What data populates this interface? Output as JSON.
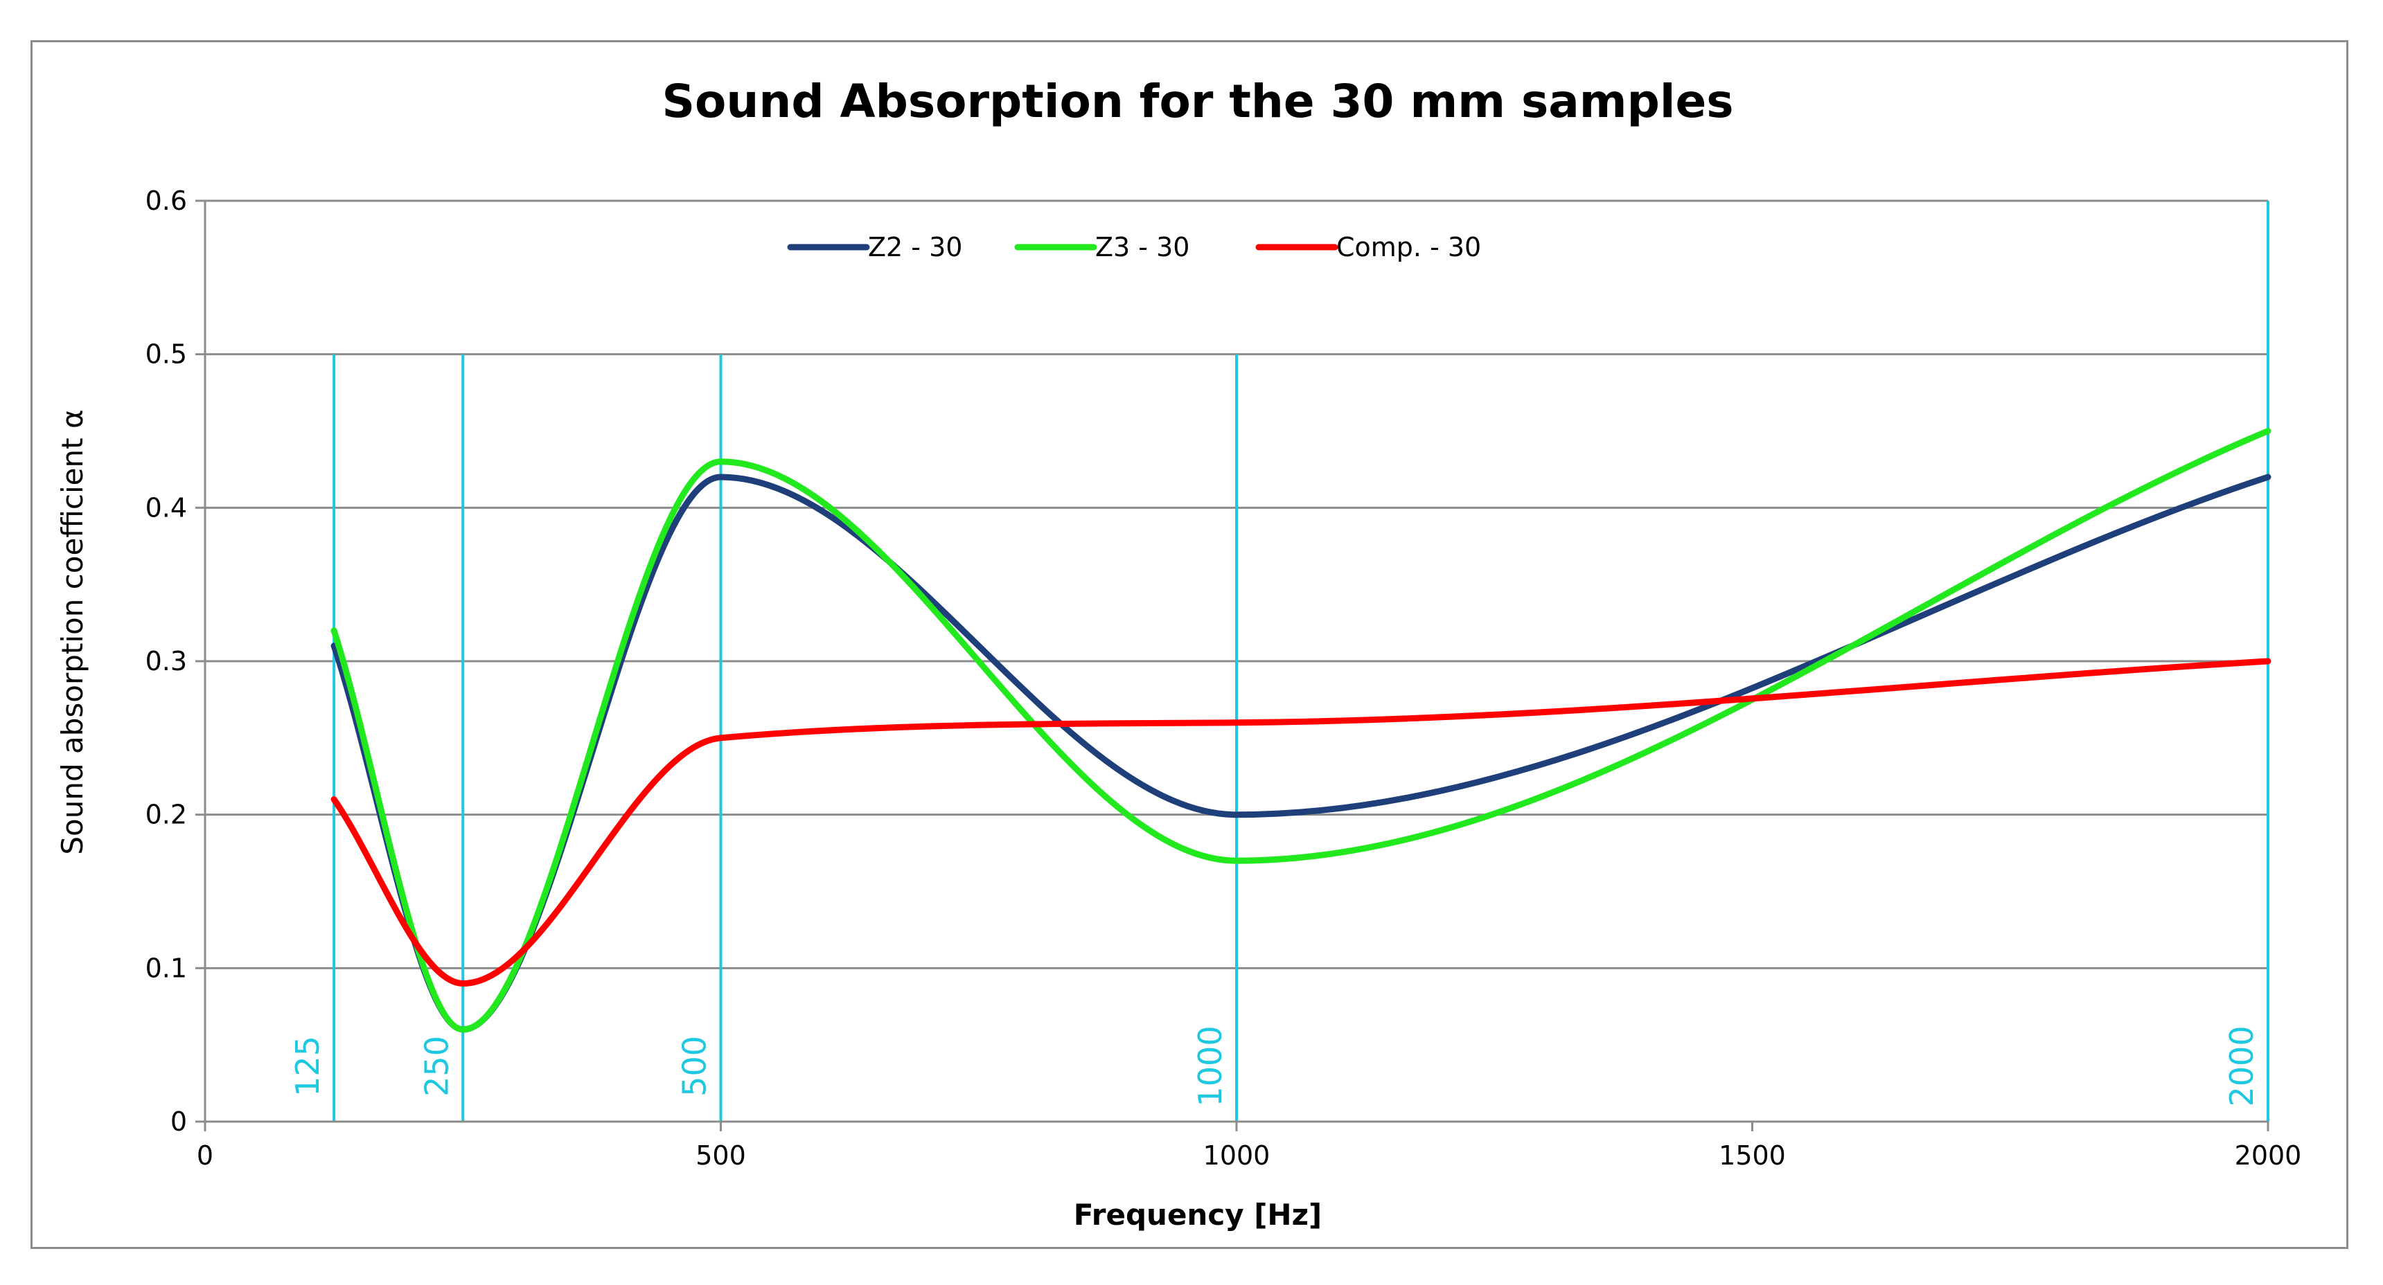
{
  "chart_data": {
    "type": "line",
    "title": "Sound Absorption for the 30 mm samples",
    "xlabel": "Frequency [Hz]",
    "ylabel": "Sound absorption coefficient α",
    "xlim": [
      0,
      2000
    ],
    "ylim": [
      0,
      0.6
    ],
    "x_ticks": [
      0,
      500,
      1000,
      1500,
      2000
    ],
    "y_ticks": [
      0,
      0.1,
      0.2,
      0.3,
      0.4,
      0.5,
      0.6
    ],
    "x_tick_labels": [
      "0",
      "500",
      "1000",
      "1500",
      "2000"
    ],
    "y_tick_labels": [
      "0",
      "0.1",
      "0.2",
      "0.3",
      "0.4",
      "0.5",
      "0.6"
    ],
    "grid": "horizontal",
    "legend_position": "top-center",
    "x": [
      125,
      250,
      500,
      1000,
      2000
    ],
    "series": [
      {
        "name": "Z2 - 30",
        "color": "#1f3f7a",
        "values": [
          0.31,
          0.06,
          0.42,
          0.2,
          0.42
        ]
      },
      {
        "name": "Z3 - 30",
        "color": "#22e81e",
        "values": [
          0.32,
          0.06,
          0.43,
          0.17,
          0.45
        ]
      },
      {
        "name": "Comp. - 30",
        "color": "#ff0000",
        "values": [
          0.21,
          0.09,
          0.25,
          0.26,
          0.3
        ]
      }
    ],
    "vertical_markers": [
      {
        "x": 125,
        "label": "125"
      },
      {
        "x": 250,
        "label": "250"
      },
      {
        "x": 500,
        "label": "500"
      },
      {
        "x": 1000,
        "label": "1000"
      },
      {
        "x": 2000,
        "label": "2000"
      }
    ],
    "marker_color": "#1ec8e0"
  }
}
